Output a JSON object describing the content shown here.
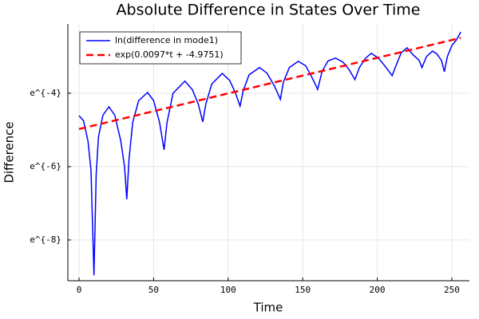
{
  "chart_data": {
    "type": "line",
    "title": "Absolute Difference in States Over Time",
    "xlabel": "Time",
    "ylabel": "Difference",
    "xlim": [
      -7.5,
      261.8
    ],
    "xticks": [
      0,
      50,
      100,
      150,
      200,
      250
    ],
    "ylim": [
      0.0001105,
      0.1212
    ],
    "yscale": "log",
    "yticks": [
      {
        "value": 0.000335462627903,
        "label": "e^{-8}"
      },
      {
        "value": 0.002478752176666,
        "label": "e^{-6}"
      },
      {
        "value": 0.018315638888734,
        "label": "e^{-4}"
      }
    ],
    "grid": true,
    "legend": "top-left",
    "series": [
      {
        "name": "ln(difference in mode1)",
        "color": "#0000ff",
        "dash": false,
        "x": [
          0,
          3,
          6,
          8,
          10,
          11.5,
          13,
          16,
          20,
          24,
          28,
          30.5,
          32,
          33.5,
          36,
          40,
          46,
          50,
          54,
          57,
          59,
          63,
          71,
          76,
          80,
          83,
          85,
          89,
          96,
          101,
          105,
          108,
          110,
          114,
          121,
          126,
          131,
          135,
          137,
          141,
          147,
          152,
          156,
          160,
          163,
          167,
          172,
          177,
          181,
          185,
          188,
          192,
          196,
          201,
          205,
          210,
          213,
          216,
          220,
          224,
          228,
          230,
          233,
          237,
          240,
          243,
          245,
          247,
          250,
          253,
          256
        ],
        "values": [
          0.00995,
          0.00865,
          0.00499,
          0.00224,
          0.000128,
          0.00203,
          0.00552,
          0.01005,
          0.01265,
          0.01005,
          0.00499,
          0.00248,
          0.00102,
          0.00303,
          0.00823,
          0.015,
          0.0187,
          0.015,
          0.00823,
          0.00392,
          0.00823,
          0.0183,
          0.0255,
          0.0202,
          0.0136,
          0.0084,
          0.0136,
          0.0235,
          0.0314,
          0.026,
          0.0183,
          0.0129,
          0.0193,
          0.0302,
          0.0369,
          0.0317,
          0.0224,
          0.0155,
          0.0247,
          0.0369,
          0.0437,
          0.0388,
          0.0287,
          0.0204,
          0.0334,
          0.0442,
          0.0478,
          0.0429,
          0.0351,
          0.0265,
          0.0369,
          0.0474,
          0.0545,
          0.0474,
          0.0388,
          0.0296,
          0.0408,
          0.055,
          0.0633,
          0.0523,
          0.045,
          0.0369,
          0.0498,
          0.0578,
          0.0534,
          0.045,
          0.033,
          0.0498,
          0.0672,
          0.0781,
          0.0973
        ]
      },
      {
        "name": "exp(0.0097*t + -4.9751)",
        "color": "#ff0000",
        "dash": true,
        "x": [
          0,
          256
        ],
        "values": [
          0.00691,
          0.0828
        ]
      }
    ]
  }
}
